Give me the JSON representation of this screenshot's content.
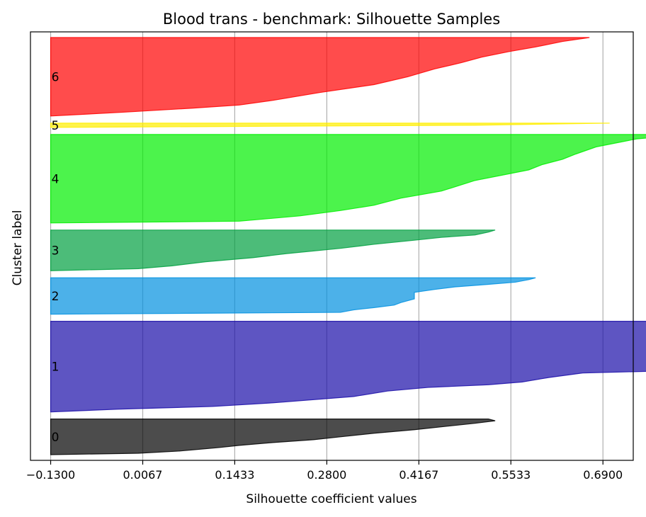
{
  "chart_data": {
    "type": "area",
    "title": "Blood trans - benchmark: Silhouette Samples",
    "xlabel": "Silhouette coefficient values",
    "ylabel": "Cluster label",
    "xlim": [
      -0.16,
      0.735
    ],
    "x_ticks": [
      -0.13,
      0.0067,
      0.1433,
      0.28,
      0.4167,
      0.5533,
      0.69
    ],
    "x_tick_labels": [
      "−0.1300",
      "0.0067",
      "0.1433",
      "0.2800",
      "0.4167",
      "0.5533",
      "0.6900"
    ],
    "grid": "vertical",
    "clusters": [
      {
        "label": "0",
        "color": "#000000",
        "samples": 50,
        "profile": [
          [
            0,
            -0.13
          ],
          [
            0.04,
            0.0
          ],
          [
            0.1,
            0.06
          ],
          [
            0.2,
            0.12
          ],
          [
            0.26,
            0.15
          ],
          [
            0.34,
            0.2
          ],
          [
            0.42,
            0.26
          ],
          [
            0.5,
            0.3
          ],
          [
            0.6,
            0.35
          ],
          [
            0.7,
            0.41
          ],
          [
            0.78,
            0.45
          ],
          [
            0.88,
            0.5
          ],
          [
            0.95,
            0.53
          ],
          [
            1,
            0.52
          ]
        ]
      },
      {
        "label": "1",
        "color": "#1a0da8",
        "samples": 127,
        "profile": [
          [
            0,
            -0.13
          ],
          [
            0.03,
            -0.03
          ],
          [
            0.06,
            0.11
          ],
          [
            0.1,
            0.2
          ],
          [
            0.17,
            0.32
          ],
          [
            0.23,
            0.37
          ],
          [
            0.27,
            0.43
          ],
          [
            0.3,
            0.52
          ],
          [
            0.33,
            0.57
          ],
          [
            0.38,
            0.61
          ],
          [
            0.43,
            0.66
          ],
          [
            0.45,
            0.77
          ],
          [
            0.5,
            0.77
          ],
          [
            0.55,
            0.78
          ],
          [
            0.72,
            0.78
          ],
          [
            0.75,
            0.8
          ],
          [
            0.82,
            0.8
          ],
          [
            0.9,
            0.815
          ],
          [
            0.97,
            0.818
          ],
          [
            1,
            0.825
          ]
        ]
      },
      {
        "label": "2",
        "color": "#0090e0",
        "samples": 51,
        "profile": [
          [
            0,
            -0.13
          ],
          [
            0.05,
            0.3
          ],
          [
            0.12,
            0.32
          ],
          [
            0.18,
            0.35
          ],
          [
            0.25,
            0.38
          ],
          [
            0.32,
            0.39
          ],
          [
            0.42,
            0.41
          ],
          [
            0.6,
            0.41
          ],
          [
            0.68,
            0.44
          ],
          [
            0.75,
            0.47
          ],
          [
            0.82,
            0.52
          ],
          [
            0.88,
            0.56
          ],
          [
            0.95,
            0.58
          ],
          [
            1,
            0.59
          ]
        ]
      },
      {
        "label": "3",
        "color": "#00a040",
        "samples": 57,
        "profile": [
          [
            0,
            -0.13
          ],
          [
            0.05,
            0.0
          ],
          [
            0.12,
            0.05
          ],
          [
            0.22,
            0.1
          ],
          [
            0.32,
            0.17
          ],
          [
            0.42,
            0.22
          ],
          [
            0.55,
            0.3
          ],
          [
            0.65,
            0.35
          ],
          [
            0.75,
            0.41
          ],
          [
            0.82,
            0.45
          ],
          [
            0.88,
            0.5
          ],
          [
            0.95,
            0.52
          ],
          [
            1,
            0.53
          ]
        ]
      },
      {
        "label": "4",
        "color": "#00ee00",
        "samples": 124,
        "profile": [
          [
            0,
            -0.13
          ],
          [
            0.02,
            0.15
          ],
          [
            0.08,
            0.24
          ],
          [
            0.14,
            0.3
          ],
          [
            0.2,
            0.35
          ],
          [
            0.28,
            0.39
          ],
          [
            0.32,
            0.42
          ],
          [
            0.36,
            0.45
          ],
          [
            0.48,
            0.5
          ],
          [
            0.54,
            0.54
          ],
          [
            0.6,
            0.58
          ],
          [
            0.66,
            0.6
          ],
          [
            0.72,
            0.63
          ],
          [
            0.78,
            0.65
          ],
          [
            0.86,
            0.68
          ],
          [
            0.92,
            0.72
          ],
          [
            0.95,
            0.74
          ],
          [
            0.97,
            0.77
          ],
          [
            1,
            0.775
          ]
        ]
      },
      {
        "label": "5",
        "color": "#ffee00",
        "samples": 6,
        "profile": [
          [
            0,
            -0.13
          ],
          [
            0.5,
            0.5
          ],
          [
            1,
            0.7
          ]
        ]
      },
      {
        "label": "6",
        "color": "#ff0000",
        "samples": 110,
        "profile": [
          [
            0,
            -0.13
          ],
          [
            0.05,
            -0.02
          ],
          [
            0.1,
            0.08
          ],
          [
            0.14,
            0.15
          ],
          [
            0.2,
            0.2
          ],
          [
            0.3,
            0.27
          ],
          [
            0.4,
            0.35
          ],
          [
            0.5,
            0.4
          ],
          [
            0.6,
            0.44
          ],
          [
            0.68,
            0.48
          ],
          [
            0.75,
            0.51
          ],
          [
            0.82,
            0.55
          ],
          [
            0.88,
            0.59
          ],
          [
            0.95,
            0.63
          ],
          [
            1,
            0.67
          ]
        ]
      }
    ]
  }
}
